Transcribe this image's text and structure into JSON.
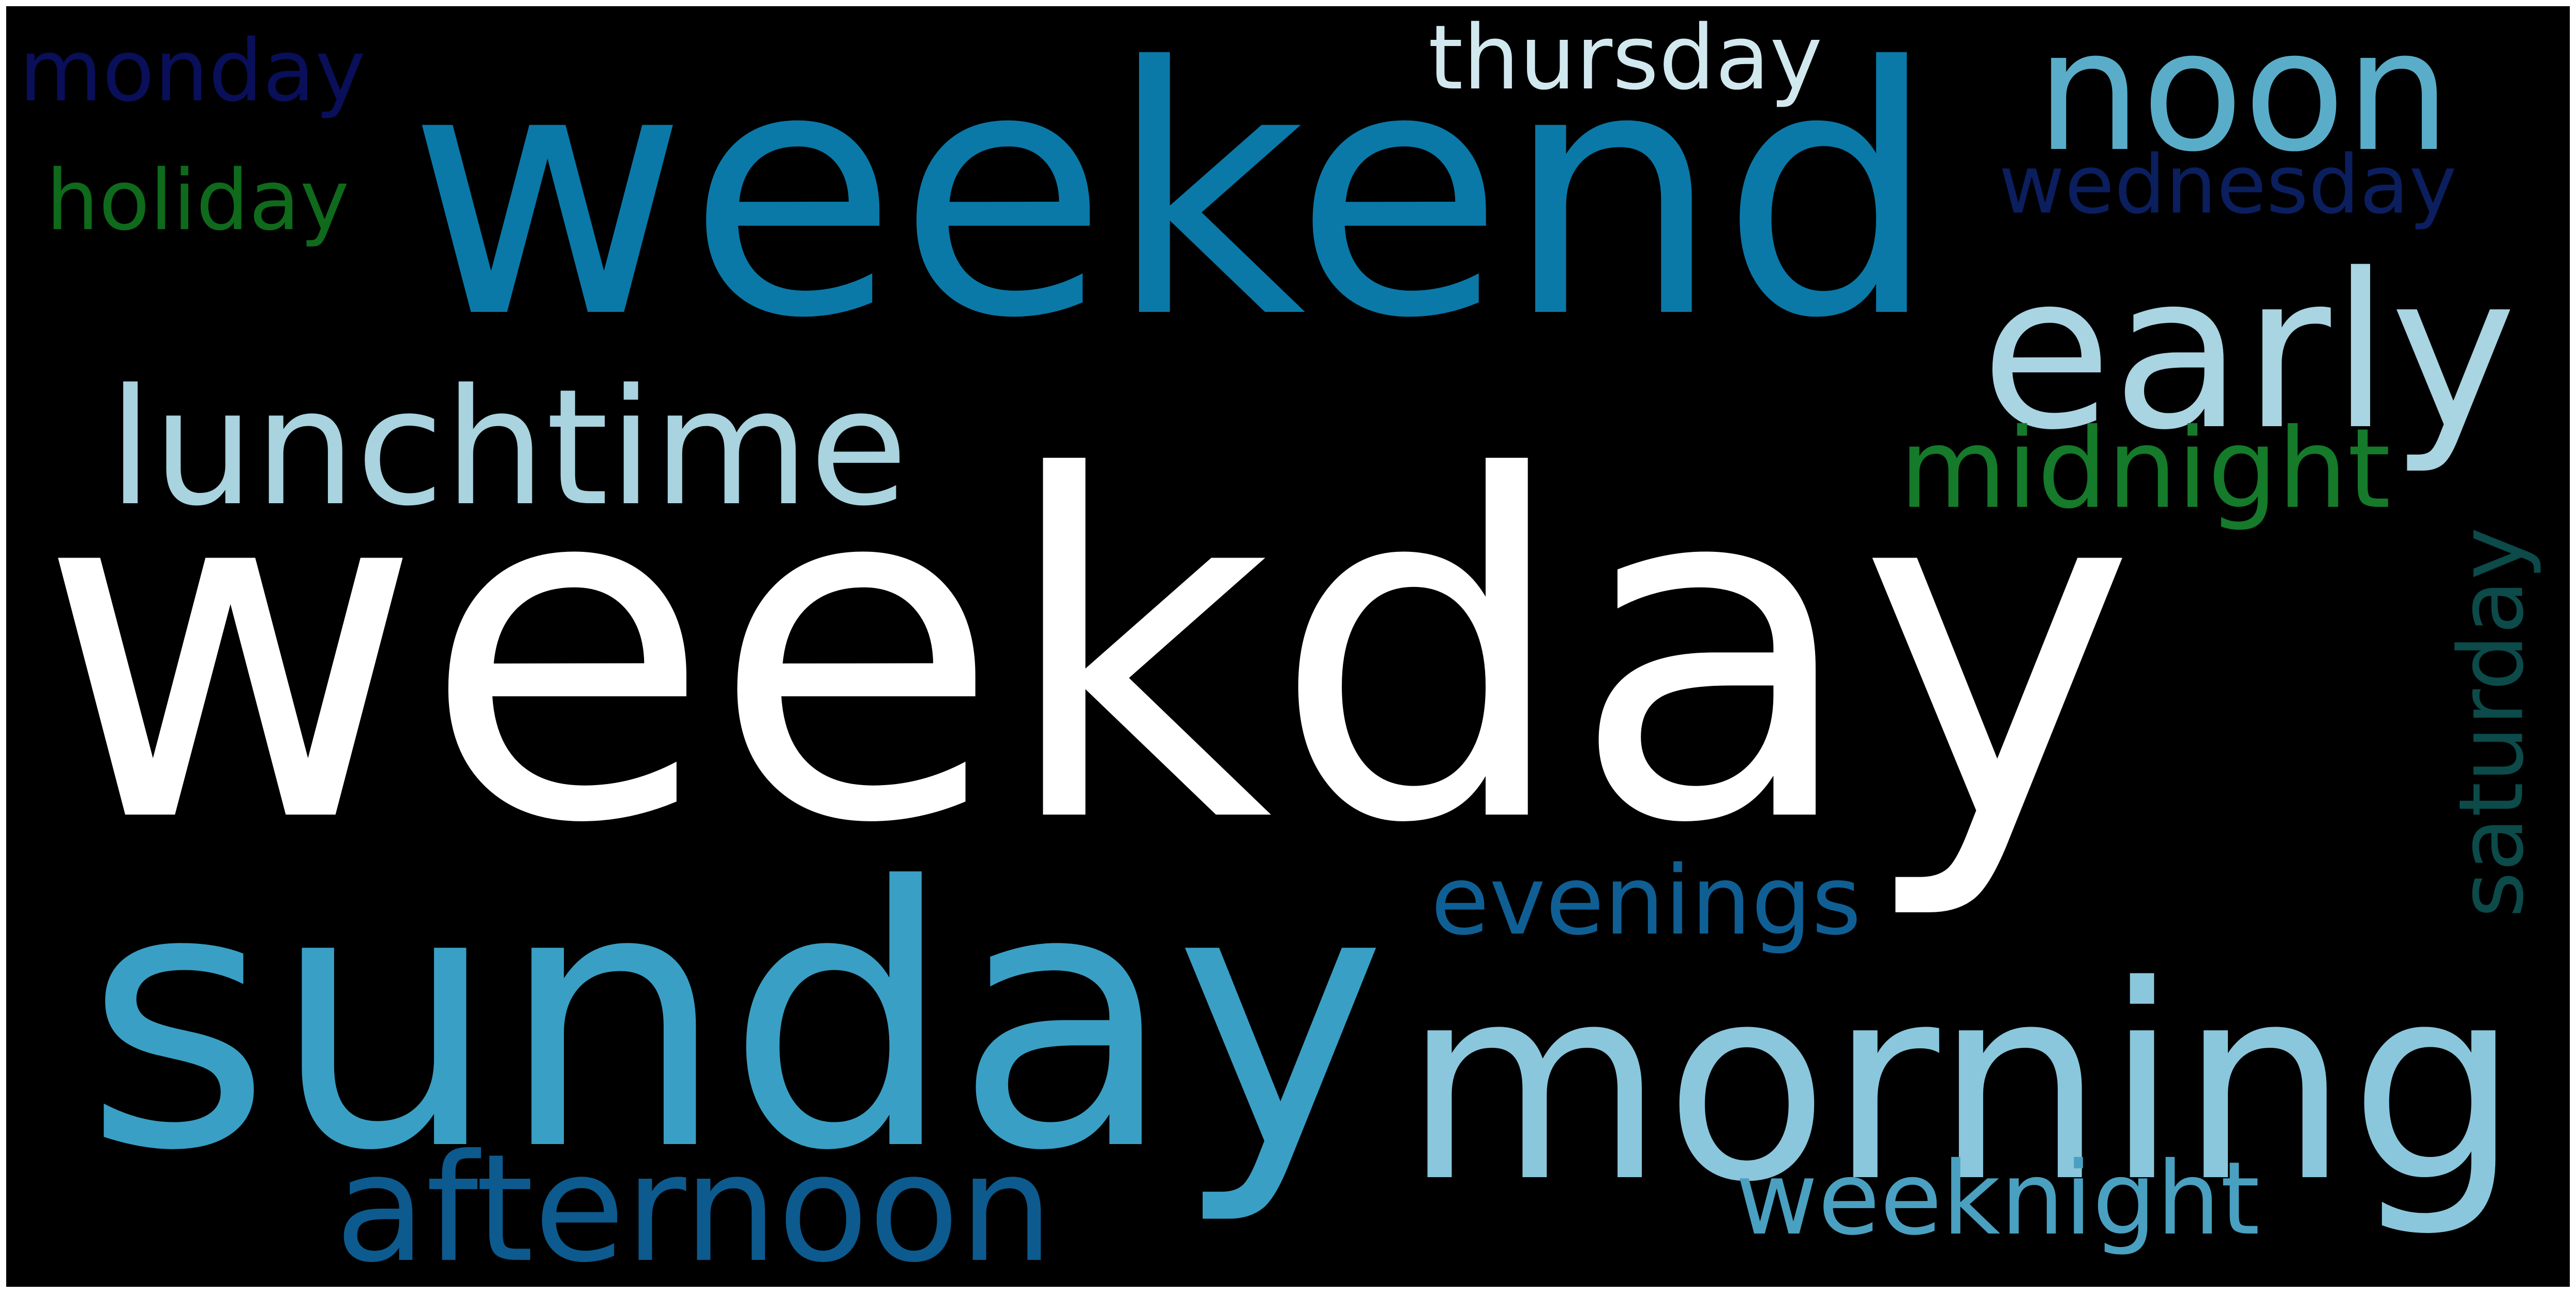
{
  "background": "#000000",
  "words": [
    {
      "text": "weekday",
      "color": "#ffffff"
    },
    {
      "text": "weekend",
      "color": "#0a79a8"
    },
    {
      "text": "sunday",
      "color": "#3a9fc4"
    },
    {
      "text": "morning",
      "color": "#8ac7dc"
    },
    {
      "text": "noon",
      "color": "#5aadc8"
    },
    {
      "text": "early",
      "color": "#a9d4e2"
    },
    {
      "text": "lunchtime",
      "color": "#a8d3df"
    },
    {
      "text": "afternoon",
      "color": "#0d5a8e"
    },
    {
      "text": "weeknight",
      "color": "#4aa0c0"
    },
    {
      "text": "evenings",
      "color": "#0f5f94"
    },
    {
      "text": "thursday",
      "color": "#d2e8ef"
    },
    {
      "text": "midnight",
      "color": "#157a2a"
    },
    {
      "text": "saturday",
      "color": "#0d4a4a"
    },
    {
      "text": "wednesday",
      "color": "#0b1e5e"
    },
    {
      "text": "monday",
      "color": "#0a0f5a"
    },
    {
      "text": "holiday",
      "color": "#0f6a1c"
    }
  ]
}
